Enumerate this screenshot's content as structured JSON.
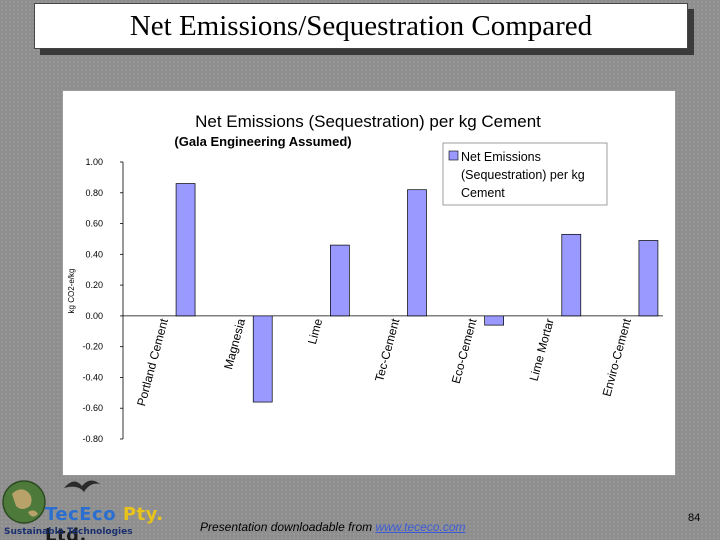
{
  "slide": {
    "title": "Net Emissions/Sequestration Compared",
    "page_number": "84",
    "footer_prefix": "Presentation downloadable from ",
    "footer_link": "www.tececo.com"
  },
  "logo": {
    "brand_tec": "TecEco",
    "brand_pty": " Pty.",
    "brand_ltd": " Ltd.",
    "tagline": "Sustainable Technologies"
  },
  "colors": {
    "bar_fill": "#9999ff",
    "bar_stroke": "#000000"
  },
  "chart_data": {
    "type": "bar",
    "title": "Net Emissions (Sequestration) per kg Cement",
    "subtitle": "(Gala Engineering Assumed)",
    "ylabel": "kg CO2-e/kg",
    "xlabel": "",
    "ylim": [
      -0.8,
      1.0
    ],
    "yticks": [
      "1.00",
      "0.80",
      "0.60",
      "0.40",
      "0.20",
      "0.00",
      "-0.20",
      "-0.40",
      "-0.60",
      "-0.80"
    ],
    "ytick_values": [
      1.0,
      0.8,
      0.6,
      0.4,
      0.2,
      0.0,
      -0.2,
      -0.4,
      -0.6,
      -0.8
    ],
    "legend": {
      "placement": "top-right",
      "lines": [
        "Net Emissions",
        "(Sequestration) per kg",
        "Cement"
      ]
    },
    "grid": false,
    "categories": [
      "Portland Cement",
      "Magnesia",
      "Lime",
      "Tec-Cement",
      "Eco-Cement",
      "Lime Mortar",
      "Enviro-Cement"
    ],
    "values": [
      0.86,
      -0.56,
      0.46,
      0.82,
      -0.06,
      0.53,
      0.49
    ]
  }
}
